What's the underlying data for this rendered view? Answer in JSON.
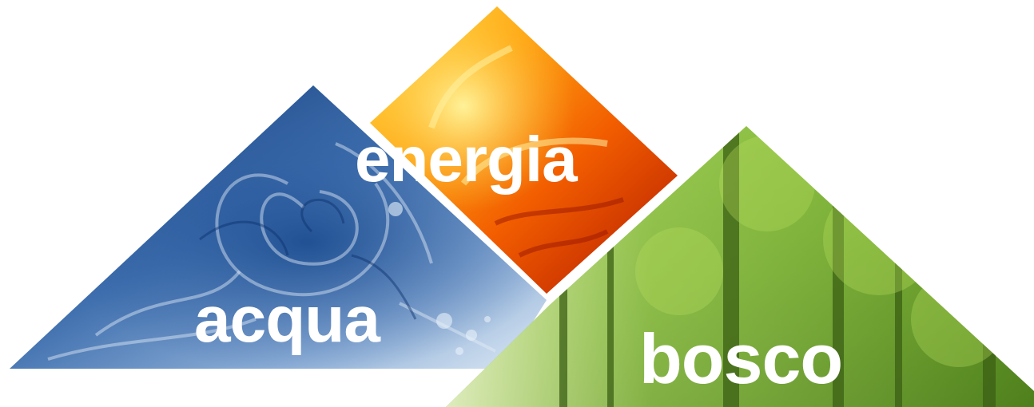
{
  "labels": {
    "energia": "energia",
    "acqua": "acqua",
    "bosco": "bosco"
  },
  "colors": {
    "water_light": "#d8e6f2",
    "water_mid": "#6a93c4",
    "water_dark": "#163f82",
    "fire_light": "#ffd21a",
    "fire_mid": "#f26a00",
    "fire_dark": "#b51c00",
    "forest_light": "#c9e86a",
    "forest_mid": "#7bb82a",
    "forest_dark": "#3c6416",
    "text": "#ffffff",
    "background": "#ffffff"
  }
}
